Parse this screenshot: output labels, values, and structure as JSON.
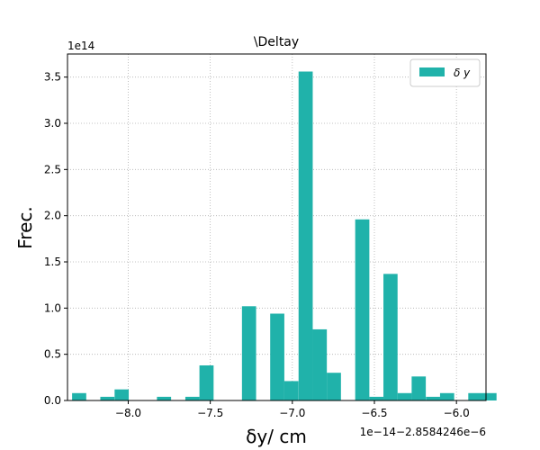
{
  "chart_data": {
    "type": "bar",
    "title": "\\Deltay",
    "xlabel": "δy/ cm",
    "ylabel": "Frec.",
    "y_multiplier_label": "1e14",
    "x_offset_label": "1e−14−2.8584246e−6",
    "xlim": [
      -8.37,
      -5.82
    ],
    "ylim": [
      0,
      3.75
    ],
    "x_ticks": [
      -8.0,
      -7.5,
      -7.0,
      -6.5,
      -6.0
    ],
    "x_tick_labels": [
      "−8.0",
      "−7.5",
      "−7.0",
      "−6.5",
      "−6.0"
    ],
    "y_ticks": [
      0.0,
      0.5,
      1.0,
      1.5,
      2.0,
      2.5,
      3.0,
      3.5
    ],
    "y_tick_labels": [
      "0.0",
      "0.5",
      "1.0",
      "1.5",
      "2.0",
      "2.5",
      "3.0",
      "3.5"
    ],
    "grid": true,
    "legend_position": "top-right",
    "color": "#20b2aa",
    "bin_width": 0.0862,
    "series": [
      {
        "name": "δ y",
        "bins": [
          {
            "x0": -8.342,
            "value": 0.08
          },
          {
            "x0": -8.17,
            "value": 0.04
          },
          {
            "x0": -8.083,
            "value": 0.12
          },
          {
            "x0": -7.825,
            "value": 0.04
          },
          {
            "x0": -7.652,
            "value": 0.04
          },
          {
            "x0": -7.566,
            "value": 0.38
          },
          {
            "x0": -7.307,
            "value": 1.02
          },
          {
            "x0": -7.135,
            "value": 0.94
          },
          {
            "x0": -7.049,
            "value": 0.21
          },
          {
            "x0": -6.962,
            "value": 3.56
          },
          {
            "x0": -6.876,
            "value": 0.77
          },
          {
            "x0": -6.79,
            "value": 0.3
          },
          {
            "x0": -6.617,
            "value": 1.96
          },
          {
            "x0": -6.531,
            "value": 0.04
          },
          {
            "x0": -6.445,
            "value": 1.37
          },
          {
            "x0": -6.359,
            "value": 0.08
          },
          {
            "x0": -6.273,
            "value": 0.26
          },
          {
            "x0": -6.186,
            "value": 0.04
          },
          {
            "x0": -6.1,
            "value": 0.08
          },
          {
            "x0": -5.928,
            "value": 0.08
          },
          {
            "x0": -5.842,
            "value": 0.08
          }
        ]
      }
    ]
  }
}
